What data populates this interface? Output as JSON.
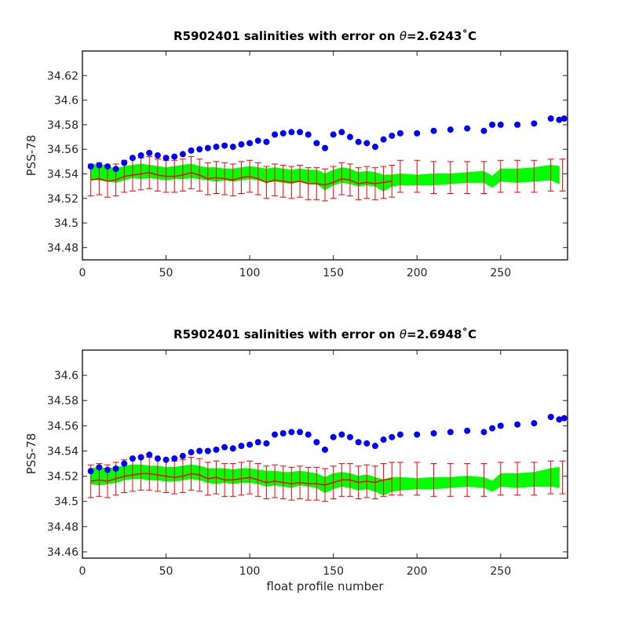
{
  "chart_data": [
    {
      "type": "scatter",
      "title": "R5902401 salinities with error on θ=2.6243˚C",
      "title_parts": {
        "prefix": "R5902401 salinities with error on ",
        "symbol": "θ",
        "suffix": "=2.6243˚C"
      },
      "ylabel": "PSS-78",
      "xlabel": "",
      "xlim": [
        0,
        290
      ],
      "ylim": [
        34.47,
        34.64
      ],
      "xticks": [
        0,
        50,
        100,
        150,
        200,
        250
      ],
      "yticks": [
        34.48,
        34.5,
        34.52,
        34.54,
        34.56,
        34.58,
        34.6,
        34.62
      ],
      "ytick_labels": [
        "34.48",
        "34.5",
        "34.52",
        "34.54",
        "34.56",
        "34.58",
        "34.6",
        "34.62"
      ],
      "grid": false,
      "colors": {
        "measured": "#0000ff",
        "mapped_band": "#00ff00",
        "mapped_line": "#ff0000",
        "errorbars": "#ff0000"
      },
      "series": [
        {
          "style": "markers",
          "color": "#0000ff",
          "x": [
            5,
            10,
            15,
            20,
            25,
            30,
            35,
            40,
            45,
            50,
            55,
            60,
            65,
            70,
            75,
            80,
            85,
            90,
            95,
            100,
            105,
            110,
            115,
            120,
            125,
            130,
            135,
            140,
            145,
            150,
            155,
            160,
            165,
            170,
            175,
            180,
            185,
            190,
            200,
            210,
            220,
            230,
            240,
            245,
            250,
            260,
            270,
            280,
            285,
            288
          ],
          "y": [
            34.546,
            34.547,
            34.546,
            34.544,
            34.549,
            34.553,
            34.555,
            34.557,
            34.555,
            34.553,
            34.554,
            34.556,
            34.559,
            34.56,
            34.561,
            34.562,
            34.563,
            34.562,
            34.564,
            34.565,
            34.567,
            34.566,
            34.572,
            34.573,
            34.574,
            34.574,
            34.572,
            34.565,
            34.561,
            34.572,
            34.574,
            34.57,
            34.566,
            34.565,
            34.562,
            34.568,
            34.571,
            34.573,
            34.573,
            34.575,
            34.576,
            34.577,
            34.575,
            34.58,
            34.58,
            34.58,
            34.581,
            34.585,
            34.584,
            34.585
          ]
        },
        {
          "style": "band",
          "color": "#00ff00",
          "x": [
            5,
            10,
            15,
            20,
            25,
            30,
            35,
            40,
            45,
            50,
            55,
            60,
            65,
            70,
            75,
            80,
            85,
            90,
            95,
            100,
            105,
            110,
            115,
            120,
            125,
            130,
            135,
            140,
            145,
            150,
            155,
            160,
            165,
            170,
            175,
            180,
            185,
            190,
            200,
            210,
            220,
            230,
            240,
            245,
            250,
            260,
            270,
            280,
            285
          ],
          "lower": [
            34.536,
            34.535,
            34.534,
            34.533,
            34.535,
            34.537,
            34.536,
            34.537,
            34.536,
            34.535,
            34.536,
            34.536,
            34.537,
            34.536,
            34.535,
            34.534,
            34.535,
            34.534,
            34.535,
            34.536,
            34.535,
            34.533,
            34.534,
            34.533,
            34.532,
            34.534,
            34.533,
            34.532,
            34.527,
            34.531,
            34.533,
            34.532,
            34.53,
            34.531,
            34.53,
            34.526,
            34.53,
            34.531,
            34.531,
            34.531,
            34.532,
            34.533,
            34.533,
            34.529,
            34.534,
            34.533,
            34.534,
            34.535,
            34.532
          ],
          "upper": [
            34.547,
            34.548,
            34.546,
            34.544,
            34.546,
            34.547,
            34.548,
            34.547,
            34.546,
            34.545,
            34.546,
            34.547,
            34.548,
            34.546,
            34.545,
            34.545,
            34.544,
            34.544,
            34.545,
            34.546,
            34.545,
            34.544,
            34.545,
            34.544,
            34.543,
            34.544,
            34.543,
            34.543,
            34.54,
            34.543,
            34.545,
            34.544,
            34.541,
            34.542,
            34.541,
            34.539,
            34.539,
            34.54,
            34.539,
            34.54,
            34.54,
            34.541,
            34.542,
            34.538,
            34.544,
            34.544,
            34.545,
            34.547,
            34.546
          ]
        },
        {
          "style": "line-errorbars",
          "color": "#ff0000",
          "x": [
            5,
            10,
            15,
            20,
            25,
            30,
            35,
            40,
            45,
            50,
            55,
            60,
            65,
            70,
            75,
            80,
            85,
            90,
            95,
            100,
            105,
            110,
            115,
            120,
            125,
            130,
            135,
            140,
            145,
            150,
            155,
            160,
            165,
            170,
            175,
            180,
            185
          ],
          "y": [
            34.535,
            34.536,
            34.534,
            34.535,
            34.538,
            34.539,
            34.54,
            34.541,
            34.539,
            34.538,
            34.538,
            34.539,
            34.541,
            34.539,
            34.536,
            34.537,
            34.536,
            34.535,
            34.537,
            34.538,
            34.536,
            34.533,
            34.535,
            34.534,
            34.533,
            34.534,
            34.532,
            34.532,
            34.531,
            34.533,
            34.536,
            34.535,
            34.532,
            34.533,
            34.532,
            34.533,
            34.534
          ],
          "error": 0.013
        },
        {
          "style": "errorbars-only",
          "color": "#ff0000",
          "x": [
            190,
            200,
            210,
            220,
            230,
            240,
            250,
            260,
            270,
            280,
            287
          ],
          "y": [
            34.538,
            34.538,
            34.537,
            34.537,
            34.537,
            34.537,
            34.538,
            34.538,
            34.538,
            34.539,
            34.539
          ],
          "error": 0.013
        }
      ]
    },
    {
      "type": "scatter",
      "title": "R5902401 salinities with error on θ=2.6948˚C",
      "title_parts": {
        "prefix": "R5902401 salinities with error on ",
        "symbol": "θ",
        "suffix": "=2.6948˚C"
      },
      "ylabel": "PSS-78",
      "xlabel": "float profile number",
      "xlim": [
        0,
        290
      ],
      "ylim": [
        34.455,
        34.62
      ],
      "xticks": [
        0,
        50,
        100,
        150,
        200,
        250
      ],
      "yticks": [
        34.46,
        34.48,
        34.5,
        34.52,
        34.54,
        34.56,
        34.58,
        34.6
      ],
      "ytick_labels": [
        "34.46",
        "34.48",
        "34.5",
        "34.52",
        "34.54",
        "34.56",
        "34.58",
        "34.6"
      ],
      "grid": false,
      "colors": {
        "measured": "#0000ff",
        "mapped_band": "#00ff00",
        "mapped_line": "#ff0000",
        "errorbars": "#ff0000"
      },
      "series": [
        {
          "style": "markers",
          "color": "#0000ff",
          "x": [
            5,
            10,
            15,
            20,
            25,
            30,
            35,
            40,
            45,
            50,
            55,
            60,
            65,
            70,
            75,
            80,
            85,
            90,
            95,
            100,
            105,
            110,
            115,
            120,
            125,
            130,
            135,
            140,
            145,
            150,
            155,
            160,
            165,
            170,
            175,
            180,
            185,
            190,
            200,
            210,
            220,
            230,
            240,
            245,
            250,
            260,
            270,
            280,
            285,
            288
          ],
          "y": [
            34.524,
            34.527,
            34.525,
            34.526,
            34.53,
            34.534,
            34.535,
            34.537,
            34.534,
            34.533,
            34.534,
            34.536,
            34.539,
            34.54,
            34.54,
            34.541,
            34.543,
            34.542,
            34.544,
            34.545,
            34.547,
            34.546,
            34.553,
            34.554,
            34.555,
            34.555,
            34.553,
            34.547,
            34.541,
            34.551,
            34.553,
            34.551,
            34.547,
            34.546,
            34.544,
            34.549,
            34.551,
            34.553,
            34.553,
            34.554,
            34.555,
            34.556,
            34.555,
            34.558,
            34.56,
            34.561,
            34.562,
            34.567,
            34.565,
            34.566
          ]
        },
        {
          "style": "band",
          "color": "#00ff00",
          "x": [
            5,
            10,
            15,
            20,
            25,
            30,
            35,
            40,
            45,
            50,
            55,
            60,
            65,
            70,
            75,
            80,
            85,
            90,
            95,
            100,
            105,
            110,
            115,
            120,
            125,
            130,
            135,
            140,
            145,
            150,
            155,
            160,
            165,
            170,
            175,
            180,
            185,
            190,
            200,
            210,
            220,
            230,
            240,
            245,
            250,
            260,
            270,
            280,
            285
          ],
          "lower": [
            34.514,
            34.513,
            34.514,
            34.515,
            34.517,
            34.518,
            34.518,
            34.517,
            34.517,
            34.516,
            34.516,
            34.517,
            34.518,
            34.517,
            34.515,
            34.514,
            34.515,
            34.514,
            34.515,
            34.515,
            34.514,
            34.512,
            34.513,
            34.512,
            34.511,
            34.513,
            34.512,
            34.511,
            34.507,
            34.51,
            34.512,
            34.511,
            34.509,
            34.51,
            34.508,
            34.505,
            34.508,
            34.509,
            34.51,
            34.51,
            34.511,
            34.512,
            34.511,
            34.508,
            34.512,
            34.511,
            34.512,
            34.512,
            34.511
          ],
          "upper": [
            34.526,
            34.527,
            34.526,
            34.527,
            34.528,
            34.529,
            34.529,
            34.528,
            34.528,
            34.527,
            34.527,
            34.528,
            34.529,
            34.528,
            34.526,
            34.526,
            34.526,
            34.525,
            34.526,
            34.526,
            34.525,
            34.524,
            34.524,
            34.523,
            34.523,
            34.524,
            34.523,
            34.522,
            34.519,
            34.522,
            34.523,
            34.522,
            34.52,
            34.521,
            34.519,
            34.517,
            34.519,
            34.519,
            34.518,
            34.519,
            34.519,
            34.52,
            34.519,
            34.516,
            34.522,
            34.522,
            34.523,
            34.526,
            34.527
          ]
        },
        {
          "style": "line-errorbars",
          "color": "#ff0000",
          "x": [
            5,
            10,
            15,
            20,
            25,
            30,
            35,
            40,
            45,
            50,
            55,
            60,
            65,
            70,
            75,
            80,
            85,
            90,
            95,
            100,
            105,
            110,
            115,
            120,
            125,
            130,
            135,
            140,
            145,
            150,
            155,
            160,
            165,
            170,
            175,
            180,
            185
          ],
          "y": [
            34.516,
            34.517,
            34.516,
            34.518,
            34.52,
            34.521,
            34.522,
            34.522,
            34.521,
            34.52,
            34.519,
            34.52,
            34.522,
            34.521,
            34.518,
            34.519,
            34.517,
            34.517,
            34.518,
            34.519,
            34.517,
            34.515,
            34.516,
            34.515,
            34.514,
            34.515,
            34.514,
            34.514,
            34.513,
            34.515,
            34.517,
            34.517,
            34.515,
            34.516,
            34.515,
            34.517,
            34.518
          ],
          "error": 0.013
        },
        {
          "style": "errorbars-only",
          "color": "#ff0000",
          "x": [
            190,
            200,
            210,
            220,
            230,
            240,
            250,
            260,
            270,
            280,
            287
          ],
          "y": [
            34.518,
            34.518,
            34.517,
            34.517,
            34.517,
            34.517,
            34.518,
            34.518,
            34.518,
            34.519,
            34.519
          ],
          "error": 0.013
        }
      ]
    }
  ]
}
